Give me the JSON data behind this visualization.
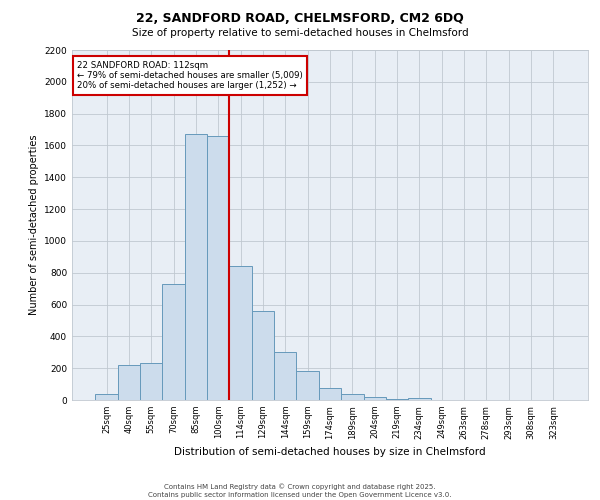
{
  "title1": "22, SANDFORD ROAD, CHELMSFORD, CM2 6DQ",
  "title2": "Size of property relative to semi-detached houses in Chelmsford",
  "xlabel": "Distribution of semi-detached houses by size in Chelmsford",
  "ylabel": "Number of semi-detached properties",
  "bar_labels": [
    "25sqm",
    "40sqm",
    "55sqm",
    "70sqm",
    "85sqm",
    "100sqm",
    "114sqm",
    "129sqm",
    "144sqm",
    "159sqm",
    "174sqm",
    "189sqm",
    "204sqm",
    "219sqm",
    "234sqm",
    "249sqm",
    "263sqm",
    "278sqm",
    "293sqm",
    "308sqm",
    "323sqm"
  ],
  "bar_values": [
    40,
    220,
    230,
    730,
    1670,
    1660,
    840,
    560,
    300,
    180,
    75,
    35,
    20,
    5,
    15,
    3,
    2,
    1,
    1,
    1,
    1
  ],
  "bar_color": "#ccdcec",
  "bar_edge_color": "#6699bb",
  "property_line_index": 6,
  "property_size": "112sqm",
  "pct_smaller": 79,
  "n_smaller": 5009,
  "pct_larger": 20,
  "n_larger": 1252,
  "annotation_box_color": "#ffffff",
  "annotation_box_edge_color": "#cc0000",
  "line_color": "#cc0000",
  "ylim": [
    0,
    2200
  ],
  "yticks": [
    0,
    200,
    400,
    600,
    800,
    1000,
    1200,
    1400,
    1600,
    1800,
    2000,
    2200
  ],
  "footer1": "Contains HM Land Registry data © Crown copyright and database right 2025.",
  "footer2": "Contains public sector information licensed under the Open Government Licence v3.0.",
  "bg_color": "#ffffff",
  "plot_bg_color": "#e8eef5",
  "grid_color": "#c0c8d0"
}
